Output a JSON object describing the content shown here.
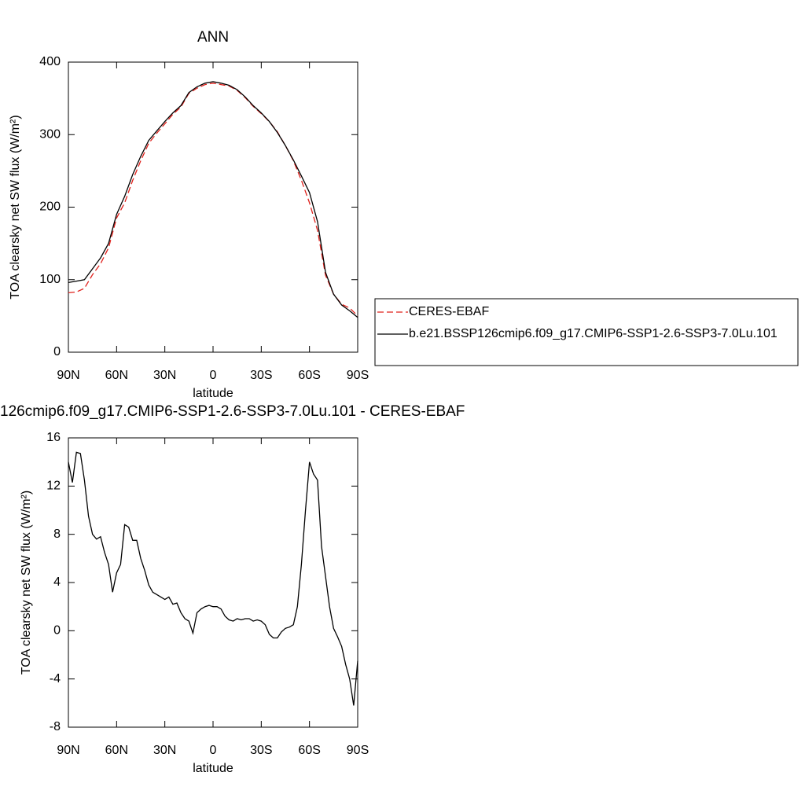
{
  "chart_data": [
    {
      "type": "line",
      "title": "ANN",
      "xlabel": "latitude",
      "ylabel": "TOA clearsky net SW flux (W/m²)",
      "x": [
        90,
        85,
        80,
        75,
        70,
        65,
        60,
        55,
        50,
        45,
        40,
        35,
        30,
        25,
        20,
        15,
        10,
        5,
        0,
        -5,
        -10,
        -15,
        -20,
        -25,
        -30,
        -35,
        -40,
        -45,
        -50,
        -55,
        -60,
        -65,
        -70,
        -75,
        -80,
        -85,
        -90
      ],
      "series": [
        {
          "name": "CERES-EBAF",
          "color": "#e0201b",
          "dash": "dashed",
          "values": [
            82,
            83,
            88,
            107,
            122,
            144,
            185,
            206,
            237,
            264,
            288,
            302,
            315,
            328,
            338,
            357,
            364,
            369,
            371,
            369,
            367,
            361,
            351,
            339,
            329,
            318,
            304,
            285,
            264,
            237,
            206,
            168,
            106,
            80,
            66,
            61,
            50
          ]
        },
        {
          "name": "b.e21.BSSP126cmip6.f09_g17.CMIP6-SSP1-2.6-SSP3-7.0Lu.101",
          "color": "#000000",
          "dash": "solid",
          "values": [
            96,
            98,
            100,
            115,
            130,
            150,
            190,
            215,
            245,
            270,
            292,
            305,
            318,
            330,
            340,
            358,
            366,
            371,
            373,
            371,
            368,
            362,
            352,
            340,
            330,
            318,
            303,
            285,
            265,
            243,
            220,
            180,
            110,
            80,
            65,
            57,
            48
          ]
        }
      ],
      "xlim": [
        90,
        -90
      ],
      "xticks": [
        {
          "value": 90,
          "label": "90N"
        },
        {
          "value": 60,
          "label": "60N"
        },
        {
          "value": 30,
          "label": "30N"
        },
        0,
        {
          "value": -30,
          "label": "30S"
        },
        {
          "value": -60,
          "label": "60S"
        },
        {
          "value": -90,
          "label": "90S"
        }
      ],
      "ylim": [
        0,
        400
      ],
      "yticks": [
        0,
        100,
        200,
        300,
        400
      ],
      "legend": "right"
    },
    {
      "type": "line",
      "title": "126cmip6.f09_g17.CMIP6-SSP1-2.6-SSP3-7.0Lu.101 - CERES-EBAF",
      "xlabel": "latitude",
      "ylabel": "TOA clearsky net SW flux (W/m²)",
      "x": [
        90,
        87.5,
        85,
        82.5,
        80,
        77.5,
        75,
        72.5,
        70,
        67.5,
        65,
        62.5,
        60,
        57.5,
        55,
        52.5,
        50,
        47.5,
        45,
        42.5,
        40,
        37.5,
        35,
        32.5,
        30,
        27.5,
        25,
        22.5,
        20,
        17.5,
        15,
        12.5,
        10,
        7.5,
        5,
        2.5,
        0,
        -2.5,
        -5,
        -7.5,
        -10,
        -12.5,
        -15,
        -17.5,
        -20,
        -22.5,
        -25,
        -27.5,
        -30,
        -32.5,
        -35,
        -37.5,
        -40,
        -42.5,
        -45,
        -47.5,
        -50,
        -52.5,
        -55,
        -57.5,
        -60,
        -62.5,
        -65,
        -67.5,
        -70,
        -72.5,
        -75,
        -77.5,
        -80,
        -82.5,
        -85,
        -87.5,
        -90
      ],
      "values": [
        14,
        12.3,
        14.8,
        14.7,
        12.5,
        9.5,
        8,
        7.6,
        7.8,
        6.5,
        5.5,
        3.2,
        4.8,
        5.5,
        8.8,
        8.6,
        7.5,
        7.5,
        6,
        5,
        3.8,
        3.2,
        3,
        2.8,
        2.6,
        2.8,
        2.2,
        2.3,
        1.5,
        1.0,
        0.8,
        -0.2,
        1.5,
        1.8,
        2.0,
        2.1,
        2.0,
        2.0,
        1.8,
        1.2,
        0.9,
        0.8,
        1.0,
        0.9,
        1.0,
        1.0,
        0.8,
        0.9,
        0.8,
        0.5,
        -0.3,
        -0.6,
        -0.6,
        -0.1,
        0.2,
        0.3,
        0.5,
        2,
        5.5,
        10,
        14,
        13,
        12.5,
        7,
        4.5,
        2,
        0.2,
        -0.5,
        -1.3,
        -2.8,
        -4,
        -6.2,
        -2.5
      ],
      "color": "#000000",
      "xlim": [
        90,
        -90
      ],
      "xticks": [
        {
          "value": 90,
          "label": "90N"
        },
        {
          "value": 60,
          "label": "60N"
        },
        {
          "value": 30,
          "label": "30N"
        },
        0,
        {
          "value": -30,
          "label": "30S"
        },
        {
          "value": -60,
          "label": "60S"
        },
        {
          "value": -90,
          "label": "90S"
        }
      ],
      "ylim": [
        -8,
        16
      ],
      "yticks": [
        -8,
        -4,
        0,
        4,
        8,
        12,
        16
      ]
    }
  ]
}
